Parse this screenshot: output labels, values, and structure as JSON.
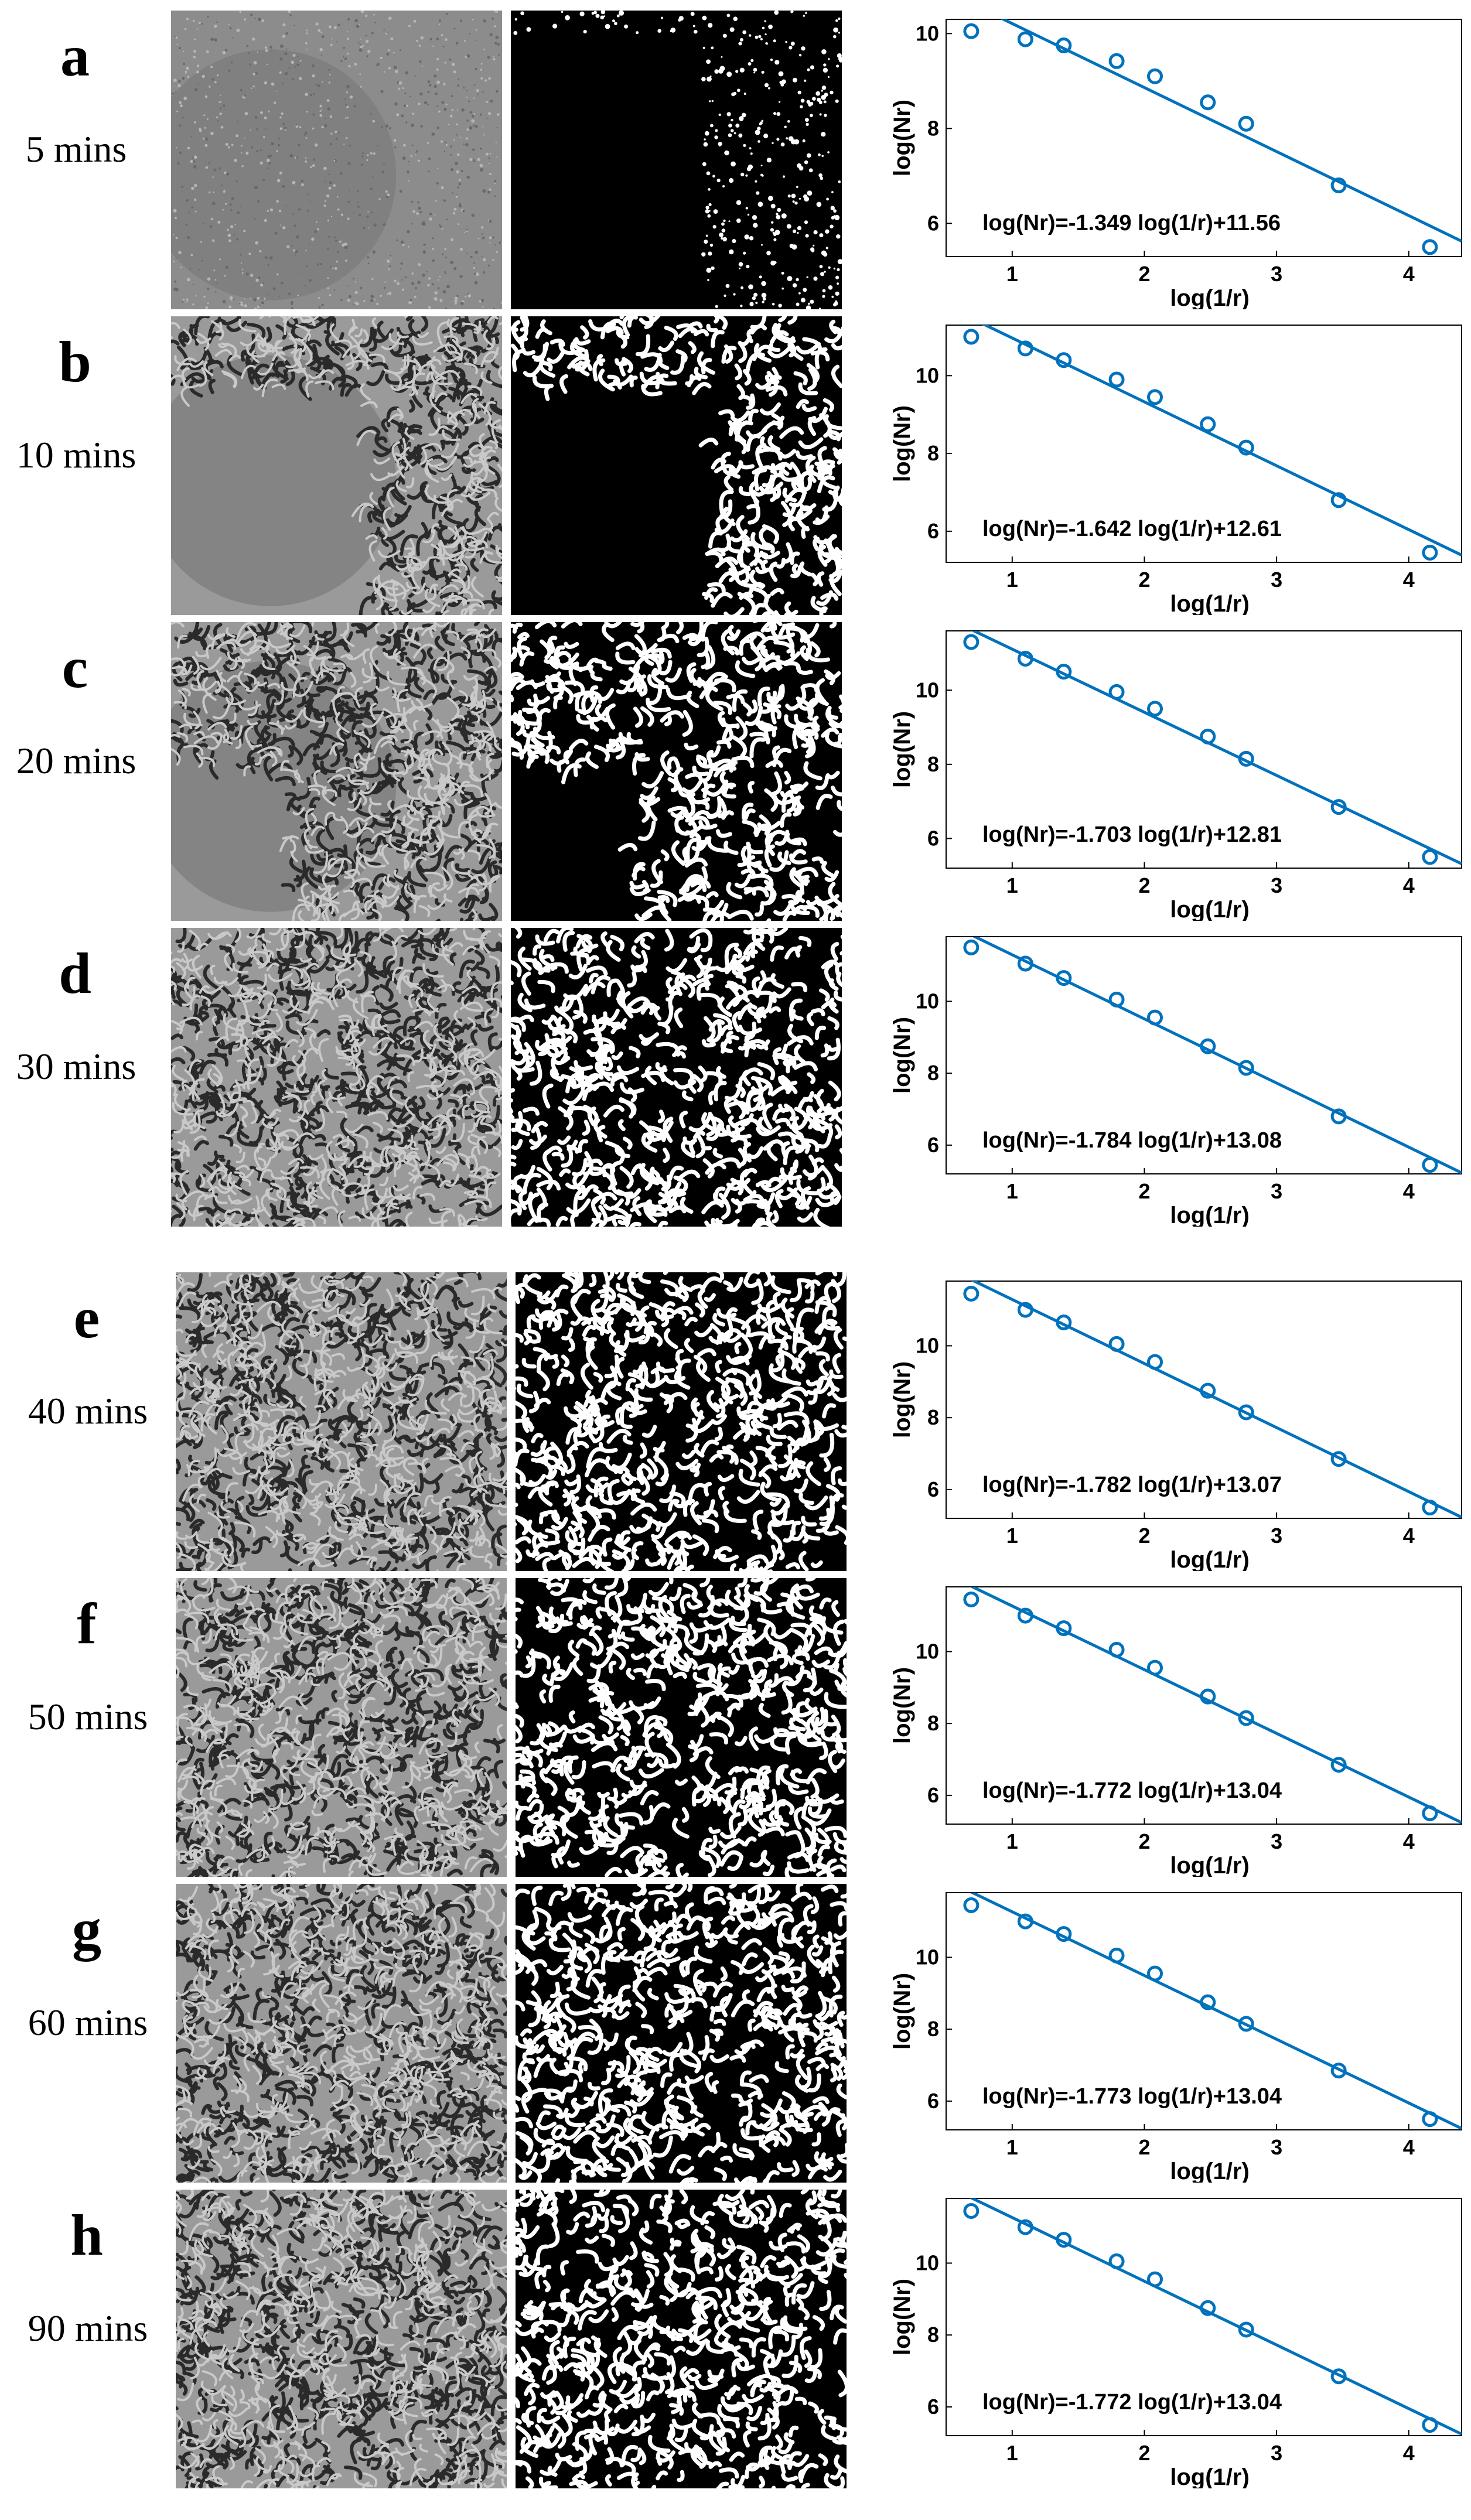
{
  "colors": {
    "series": "#0072bd",
    "axis": "#000000",
    "background": "#ffffff"
  },
  "panels": [
    {
      "letter": "a",
      "time": "5 mins"
    },
    {
      "letter": "b",
      "time": "10 mins"
    },
    {
      "letter": "c",
      "time": "20 mins"
    },
    {
      "letter": "d",
      "time": "30 mins"
    },
    {
      "letter": "e",
      "time": "40 mins"
    },
    {
      "letter": "f",
      "time": "50 mins"
    },
    {
      "letter": "g",
      "time": "60 mins"
    },
    {
      "letter": "h",
      "time": "90 mins"
    }
  ],
  "chart_data": [
    {
      "type": "scatter",
      "xlabel": "log(1/r)",
      "ylabel": "log(Nr)",
      "xlim": [
        0.5,
        4.4
      ],
      "ylim": [
        5.3,
        10.3
      ],
      "xticks": [
        "1",
        "2",
        "3",
        "4"
      ],
      "yticks": [
        "6",
        "8",
        "10"
      ],
      "equation": "log(Nr)=-1.349 log(1/r)+11.56",
      "fit": {
        "slope": -1.349,
        "intercept": 11.56
      },
      "x": [
        0.69,
        1.1,
        1.39,
        1.79,
        2.08,
        2.48,
        2.77,
        3.47,
        4.16
      ],
      "y": [
        10.05,
        9.88,
        9.75,
        9.42,
        9.1,
        8.55,
        8.1,
        6.8,
        5.5
      ]
    },
    {
      "type": "scatter",
      "xlabel": "log(1/r)",
      "ylabel": "log(Nr)",
      "xlim": [
        0.5,
        4.4
      ],
      "ylim": [
        5.2,
        11.3
      ],
      "xticks": [
        "1",
        "2",
        "3",
        "4"
      ],
      "yticks": [
        "6",
        "8",
        "10"
      ],
      "equation": "log(Nr)=-1.642 log(1/r)+12.61",
      "fit": {
        "slope": -1.642,
        "intercept": 12.61
      },
      "x": [
        0.69,
        1.1,
        1.39,
        1.79,
        2.08,
        2.48,
        2.77,
        3.47,
        4.16
      ],
      "y": [
        11.0,
        10.7,
        10.4,
        9.9,
        9.45,
        8.75,
        8.15,
        6.8,
        5.45
      ]
    },
    {
      "type": "scatter",
      "xlabel": "log(1/r)",
      "ylabel": "log(Nr)",
      "xlim": [
        0.5,
        4.4
      ],
      "ylim": [
        5.2,
        11.6
      ],
      "xticks": [
        "1",
        "2",
        "3",
        "4"
      ],
      "yticks": [
        "6",
        "8",
        "10"
      ],
      "equation": "log(Nr)=-1.703 log(1/r)+12.81",
      "fit": {
        "slope": -1.703,
        "intercept": 12.81
      },
      "x": [
        0.69,
        1.1,
        1.39,
        1.79,
        2.08,
        2.48,
        2.77,
        3.47,
        4.16
      ],
      "y": [
        11.3,
        10.85,
        10.5,
        9.95,
        9.5,
        8.75,
        8.15,
        6.85,
        5.5
      ]
    },
    {
      "type": "scatter",
      "xlabel": "log(1/r)",
      "ylabel": "log(Nr)",
      "xlim": [
        0.5,
        4.4
      ],
      "ylim": [
        5.2,
        11.8
      ],
      "xticks": [
        "1",
        "2",
        "3",
        "4"
      ],
      "yticks": [
        "6",
        "8",
        "10"
      ],
      "equation": "log(Nr)=-1.784 log(1/r)+13.08",
      "fit": {
        "slope": -1.784,
        "intercept": 13.08
      },
      "x": [
        0.69,
        1.1,
        1.39,
        1.79,
        2.08,
        2.48,
        2.77,
        3.47,
        4.16
      ],
      "y": [
        11.5,
        11.05,
        10.65,
        10.05,
        9.55,
        8.75,
        8.15,
        6.8,
        5.45
      ]
    },
    {
      "type": "scatter",
      "xlabel": "log(1/r)",
      "ylabel": "log(Nr)",
      "xlim": [
        0.5,
        4.4
      ],
      "ylim": [
        5.2,
        11.8
      ],
      "xticks": [
        "1",
        "2",
        "3",
        "4"
      ],
      "yticks": [
        "6",
        "8",
        "10"
      ],
      "equation": "log(Nr)=-1.782 log(1/r)+13.07",
      "fit": {
        "slope": -1.782,
        "intercept": 13.07
      },
      "x": [
        0.69,
        1.1,
        1.39,
        1.79,
        2.08,
        2.48,
        2.77,
        3.47,
        4.16
      ],
      "y": [
        11.45,
        11.0,
        10.65,
        10.05,
        9.55,
        8.75,
        8.15,
        6.85,
        5.5
      ]
    },
    {
      "type": "scatter",
      "xlabel": "log(1/r)",
      "ylabel": "log(Nr)",
      "xlim": [
        0.5,
        4.4
      ],
      "ylim": [
        5.2,
        11.8
      ],
      "xticks": [
        "1",
        "2",
        "3",
        "4"
      ],
      "yticks": [
        "6",
        "8",
        "10"
      ],
      "equation": "log(Nr)=-1.772 log(1/r)+13.04",
      "fit": {
        "slope": -1.772,
        "intercept": 13.04
      },
      "x": [
        0.69,
        1.1,
        1.39,
        1.79,
        2.08,
        2.48,
        2.77,
        3.47,
        4.16
      ],
      "y": [
        11.45,
        11.0,
        10.65,
        10.05,
        9.55,
        8.75,
        8.15,
        6.85,
        5.5
      ]
    },
    {
      "type": "scatter",
      "xlabel": "log(1/r)",
      "ylabel": "log(Nr)",
      "xlim": [
        0.5,
        4.4
      ],
      "ylim": [
        5.2,
        11.8
      ],
      "xticks": [
        "1",
        "2",
        "3",
        "4"
      ],
      "yticks": [
        "6",
        "8",
        "10"
      ],
      "equation": "log(Nr)=-1.773 log(1/r)+13.04",
      "fit": {
        "slope": -1.773,
        "intercept": 13.04
      },
      "x": [
        0.69,
        1.1,
        1.39,
        1.79,
        2.08,
        2.48,
        2.77,
        3.47,
        4.16
      ],
      "y": [
        11.45,
        11.0,
        10.65,
        10.05,
        9.55,
        8.75,
        8.15,
        6.85,
        5.5
      ]
    },
    {
      "type": "scatter",
      "xlabel": "log(1/r)",
      "ylabel": "log(Nr)",
      "xlim": [
        0.5,
        4.4
      ],
      "ylim": [
        5.2,
        11.8
      ],
      "xticks": [
        "1",
        "2",
        "3",
        "4"
      ],
      "yticks": [
        "6",
        "8",
        "10"
      ],
      "equation": "log(Nr)=-1.772 log(1/r)+13.04",
      "fit": {
        "slope": -1.772,
        "intercept": 13.04
      },
      "x": [
        0.69,
        1.1,
        1.39,
        1.79,
        2.08,
        2.48,
        2.77,
        3.47,
        4.16
      ],
      "y": [
        11.45,
        11.0,
        10.65,
        10.05,
        9.55,
        8.75,
        8.15,
        6.85,
        5.5
      ]
    }
  ]
}
